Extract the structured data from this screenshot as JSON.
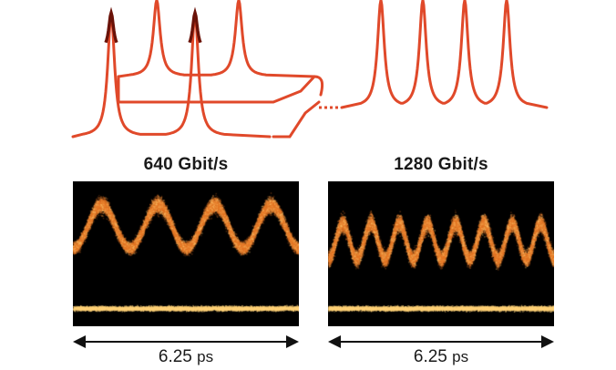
{
  "colors": {
    "pulse_stroke": "#e0492a",
    "pulse_peak": "#6a1208",
    "scope_background": "#000000",
    "eye_trace": "#e8782a",
    "eye_core": "#ffc46a",
    "arrow": "#111111"
  },
  "panels": [
    {
      "rate_label": "640 Gbit/s",
      "time_value": "6.25",
      "time_unit": "ps",
      "pulses_per_window": 4
    },
    {
      "rate_label": "1280 Gbit/s",
      "time_value": "6.25",
      "time_unit": "ps",
      "pulses_per_window": 8
    }
  ]
}
